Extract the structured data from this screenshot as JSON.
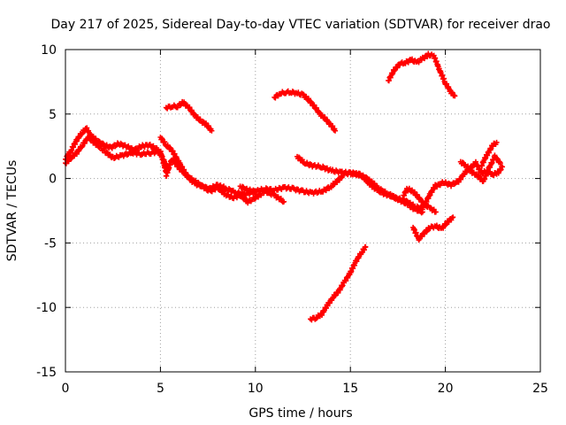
{
  "chart_data": {
    "type": "scatter",
    "title": "Day 217 of 2025, Sidereal Day-to-day VTEC variation (SDTVAR) for receiver drao",
    "xlabel": "GPS time / hours",
    "ylabel": "SDTVAR / TECUs",
    "xlim": [
      0,
      25
    ],
    "ylim": [
      -15,
      10
    ],
    "xticks": [
      0,
      5,
      10,
      15,
      20,
      25
    ],
    "xtick_labels": [
      "0",
      "5",
      "10",
      "15",
      "20",
      "25"
    ],
    "yticks": [
      -15,
      -10,
      -5,
      0,
      5,
      10
    ],
    "ytick_labels": [
      "-15",
      "-10",
      "-5",
      "0",
      "5",
      "10"
    ],
    "grid": true,
    "marker": "plus",
    "color": "#ff0000",
    "series": [
      {
        "name": "seg-main-early",
        "x": [
          0.0,
          0.3,
          0.6,
          0.9,
          1.1,
          1.3,
          1.6,
          2.0,
          2.4,
          2.8,
          3.2,
          3.6,
          4.0,
          4.4,
          4.8,
          5.1,
          5.4
        ],
        "y": [
          1.5,
          2.2,
          3.0,
          3.6,
          3.9,
          3.4,
          3.0,
          2.6,
          2.4,
          2.7,
          2.5,
          2.2,
          2.5,
          2.6,
          2.3,
          1.6,
          0.8
        ]
      },
      {
        "name": "seg-main-low",
        "x": [
          0.0,
          0.3,
          0.6,
          0.9,
          1.2,
          1.5,
          2.0,
          2.5,
          3.0,
          3.5,
          4.0,
          4.5,
          5.0,
          5.3
        ],
        "y": [
          1.2,
          1.6,
          2.0,
          2.6,
          3.2,
          2.8,
          2.2,
          1.6,
          1.8,
          2.0,
          1.9,
          2.0,
          2.1,
          0.5
        ]
      },
      {
        "name": "seg-5-to-9",
        "x": [
          5.0,
          5.3,
          5.6,
          6.0,
          6.4,
          6.8,
          7.2,
          7.6,
          8.0,
          8.5,
          9.0,
          9.5,
          10.0
        ],
        "y": [
          3.2,
          2.6,
          2.2,
          1.2,
          0.2,
          -0.4,
          -0.6,
          -0.8,
          -0.5,
          -0.8,
          -1.1,
          -1.2,
          -1.0
        ]
      },
      {
        "name": "seg-5-low",
        "x": [
          5.3,
          5.6,
          6.0,
          6.4,
          6.8,
          7.2,
          7.6,
          8.0,
          8.4,
          8.8,
          9.2,
          9.6,
          10.0,
          10.5,
          11.0,
          11.5
        ],
        "y": [
          0.2,
          1.5,
          0.8,
          0.2,
          -0.2,
          -0.6,
          -1.0,
          -0.7,
          -1.2,
          -1.5,
          -1.3,
          -1.8,
          -1.5,
          -1.0,
          -1.3,
          -1.8
        ]
      },
      {
        "name": "seg-6-upper",
        "x": [
          5.3,
          5.6,
          5.9,
          6.2,
          6.5,
          6.8,
          7.1,
          7.4,
          7.7
        ],
        "y": [
          5.5,
          5.6,
          5.6,
          5.9,
          5.5,
          4.9,
          4.5,
          4.2,
          3.7
        ]
      },
      {
        "name": "seg-10-to-14",
        "x": [
          9.2,
          9.6,
          10.0,
          10.5,
          11.0,
          11.5,
          12.0,
          12.5,
          13.0,
          13.5,
          14.0,
          14.3,
          14.6
        ],
        "y": [
          -0.6,
          -0.9,
          -1.0,
          -0.8,
          -0.9,
          -0.7,
          -0.8,
          -1.0,
          -1.1,
          -1.0,
          -0.6,
          -0.2,
          0.2
        ]
      },
      {
        "name": "seg-11-upper",
        "x": [
          11.0,
          11.3,
          11.6,
          11.9,
          12.2,
          12.5,
          12.8,
          13.1,
          13.4,
          13.7,
          14.0,
          14.2
        ],
        "y": [
          6.3,
          6.6,
          6.7,
          6.7,
          6.6,
          6.5,
          6.1,
          5.6,
          5.0,
          4.6,
          4.1,
          3.7
        ]
      },
      {
        "name": "seg-12-to-18",
        "x": [
          12.2,
          12.6,
          13.0,
          13.5,
          14.0,
          14.5,
          15.0,
          15.5,
          16.0,
          16.5,
          17.0,
          17.5,
          18.0,
          18.4,
          18.8
        ],
        "y": [
          1.7,
          1.2,
          1.0,
          0.9,
          0.6,
          0.5,
          0.4,
          0.3,
          -0.1,
          -0.8,
          -1.2,
          -1.6,
          -2.0,
          -2.4,
          -2.6
        ]
      },
      {
        "name": "seg-14-to-19",
        "x": [
          14.8,
          15.2,
          15.6,
          16.0,
          16.4,
          16.8,
          17.2,
          17.6,
          18.0,
          18.4,
          18.8,
          19.2,
          19.5
        ],
        "y": [
          0.4,
          0.4,
          0.2,
          -0.4,
          -0.9,
          -1.2,
          -1.4,
          -1.6,
          -1.8,
          -2.2,
          -2.3,
          -1.2,
          -0.5
        ]
      },
      {
        "name": "seg-13-low",
        "x": [
          12.9,
          13.2,
          13.5,
          13.8,
          14.1,
          14.4,
          14.7,
          15.0,
          15.3,
          15.6,
          15.8
        ],
        "y": [
          -10.9,
          -10.8,
          -10.5,
          -9.8,
          -9.2,
          -8.7,
          -8.0,
          -7.3,
          -6.4,
          -5.7,
          -5.3
        ]
      },
      {
        "name": "seg-17-upper",
        "x": [
          17.0,
          17.3,
          17.6,
          17.9,
          18.2,
          18.5,
          18.8,
          19.1,
          19.4,
          19.7,
          20.0,
          20.3,
          20.5
        ],
        "y": [
          7.6,
          8.4,
          8.9,
          9.0,
          9.2,
          9.0,
          9.3,
          9.6,
          9.5,
          8.4,
          7.4,
          6.7,
          6.4
        ]
      },
      {
        "name": "seg-18-low",
        "x": [
          18.3,
          18.6,
          18.9,
          19.2,
          19.5,
          19.8,
          20.1,
          20.4
        ],
        "y": [
          -3.8,
          -4.7,
          -4.2,
          -3.8,
          -3.7,
          -3.9,
          -3.4,
          -3.0
        ]
      },
      {
        "name": "seg-18-dip",
        "x": [
          17.8,
          18.0,
          18.3,
          18.6,
          18.9,
          19.2,
          19.5
        ],
        "y": [
          -1.3,
          -0.8,
          -1.0,
          -1.5,
          -2.0,
          -2.3,
          -2.6
        ]
      },
      {
        "name": "seg-19-to-23",
        "x": [
          19.5,
          19.9,
          20.3,
          20.7,
          21.0,
          21.3,
          21.6,
          21.9,
          22.2,
          22.5,
          22.8,
          23.0
        ],
        "y": [
          -0.6,
          -0.3,
          -0.5,
          -0.2,
          0.4,
          0.8,
          1.2,
          0.4,
          0.6,
          0.3,
          0.5,
          0.9
        ]
      },
      {
        "name": "seg-21-upper",
        "x": [
          20.8,
          21.1,
          21.4,
          21.7,
          22.0,
          22.3,
          22.6,
          22.9
        ],
        "y": [
          1.3,
          1.0,
          0.5,
          0.2,
          -0.2,
          0.8,
          1.7,
          1.2
        ]
      },
      {
        "name": "seg-22-rise",
        "x": [
          21.9,
          22.1,
          22.3,
          22.5,
          22.7
        ],
        "y": [
          1.0,
          1.6,
          2.1,
          2.6,
          2.8
        ]
      }
    ]
  }
}
